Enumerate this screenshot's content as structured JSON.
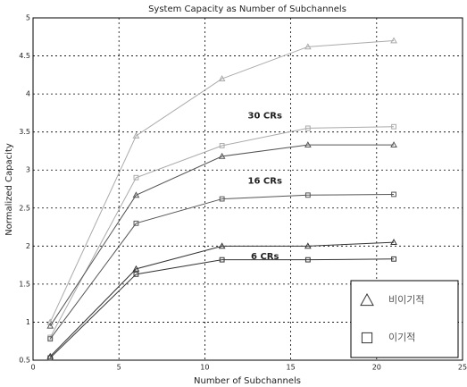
{
  "chart_data": {
    "type": "line",
    "title": "System Capacity as Number of Subchannels",
    "x_label": "Number of Subchannels",
    "y_label": "Normalized Capacity",
    "x": [
      1,
      6,
      11,
      16,
      21
    ],
    "series": [
      {
        "marker": "triangle",
        "color": "#aaaaaa",
        "values": [
          1.0,
          3.45,
          4.2,
          4.62,
          4.7
        ]
      },
      {
        "marker": "square",
        "color": "#aaaaaa",
        "values": [
          0.8,
          2.9,
          3.32,
          3.55,
          3.57
        ]
      },
      {
        "marker": "triangle",
        "color": "#555555",
        "values": [
          0.95,
          2.67,
          3.18,
          3.33,
          3.33
        ]
      },
      {
        "marker": "square",
        "color": "#555555",
        "values": [
          0.78,
          2.3,
          2.62,
          2.67,
          2.68
        ]
      },
      {
        "marker": "triangle",
        "color": "#333333",
        "values": [
          0.55,
          1.7,
          2.0,
          2.0,
          2.05
        ]
      },
      {
        "marker": "square",
        "color": "#333333",
        "values": [
          0.53,
          1.63,
          1.82,
          1.82,
          1.83
        ]
      }
    ],
    "annotations": [
      "30  CRs",
      "16  CRs",
      "6  CRs"
    ],
    "legend": [
      {
        "marker": "triangle",
        "label": "비이기적"
      },
      {
        "marker": "square",
        "label": "이기적"
      }
    ],
    "legend_position": "lower right",
    "xlim": [
      0,
      25
    ],
    "xticks": [
      0,
      5,
      10,
      15,
      20,
      25
    ],
    "ylim": [
      0.5,
      5
    ],
    "yticks": [
      0.5,
      1,
      1.5,
      2,
      2.5,
      3,
      3.5,
      4,
      4.5,
      5
    ],
    "grid": true
  }
}
